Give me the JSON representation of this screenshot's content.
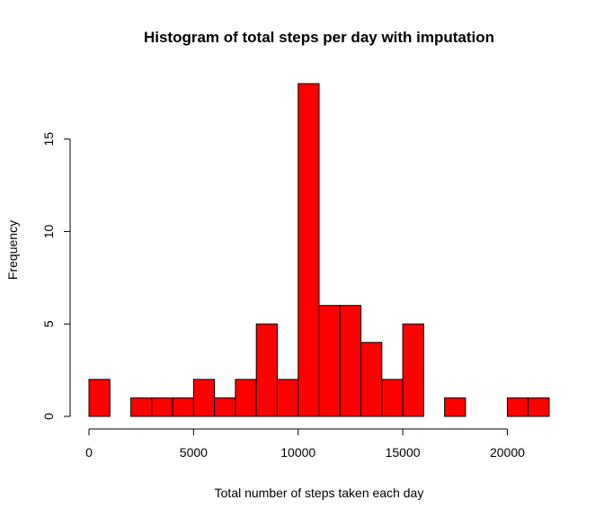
{
  "chart_data": {
    "type": "bar",
    "title": "Histogram of total steps per day with imputation",
    "xlabel": "Total number of steps taken each day",
    "ylabel": "Frequency",
    "bar_color": "#ff0000",
    "bin_width": 1000,
    "bin_starts": [
      0,
      1000,
      2000,
      3000,
      4000,
      5000,
      6000,
      7000,
      8000,
      9000,
      10000,
      11000,
      12000,
      13000,
      14000,
      15000,
      16000,
      17000,
      18000,
      19000,
      20000,
      21000
    ],
    "values": [
      2,
      0,
      1,
      1,
      1,
      2,
      1,
      2,
      5,
      2,
      18,
      6,
      6,
      4,
      2,
      5,
      0,
      1,
      0,
      0,
      1,
      1
    ],
    "xlim": [
      0,
      22000
    ],
    "ylim": [
      0,
      18
    ],
    "x_ticks": [
      0,
      5000,
      10000,
      15000,
      20000
    ],
    "x_tick_labels": [
      "0",
      "5000",
      "10000",
      "15000",
      "20000"
    ],
    "y_ticks": [
      0,
      5,
      10,
      15
    ],
    "y_tick_labels": [
      "0",
      "5",
      "10",
      "15"
    ],
    "grid": false,
    "legend": "none"
  }
}
